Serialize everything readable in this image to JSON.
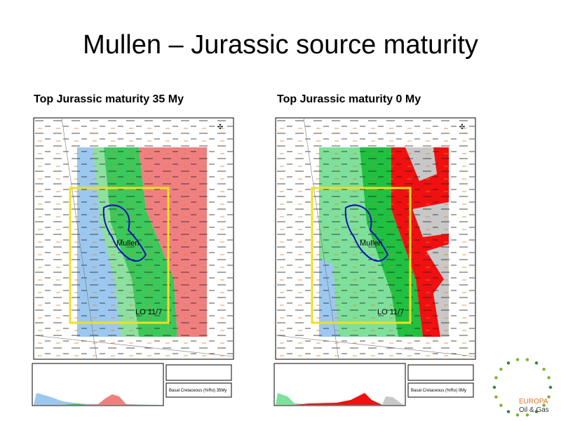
{
  "title": "Mullen – Jurassic source maturity",
  "panels": [
    {
      "heading": "Top Jurassic maturity 35 My",
      "map_label": "Mullen",
      "licence": "LO 11/7",
      "legend": "Basal Cretaceous (%Ro) 35My"
    },
    {
      "heading": "Top Jurassic maturity 0 My",
      "map_label": "Mullen",
      "licence": "LO 11/7",
      "legend": "Basal Cretaceous (%Ro) 0My"
    }
  ],
  "logo": {
    "name": "EUROPA",
    "tagline": "Oil & Gas"
  }
}
